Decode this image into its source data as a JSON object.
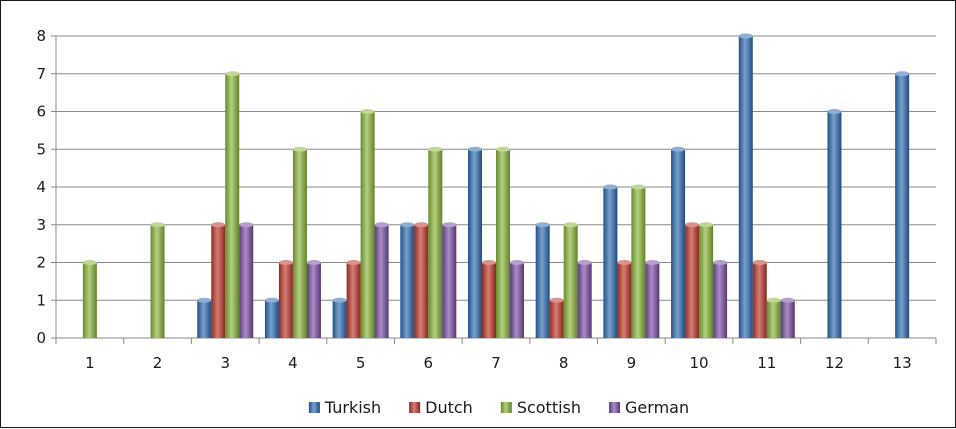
{
  "chart_data": {
    "type": "bar",
    "title": "",
    "xlabel": "",
    "ylabel": "",
    "categories": [
      "1",
      "2",
      "3",
      "4",
      "5",
      "6",
      "7",
      "8",
      "9",
      "10",
      "11",
      "12",
      "13"
    ],
    "ylim": [
      0,
      8
    ],
    "yticks": [
      "0",
      "1",
      "2",
      "3",
      "4",
      "5",
      "6",
      "7",
      "8"
    ],
    "grid": true,
    "legend_position": "bottom",
    "series": [
      {
        "name": "Turkish",
        "color": "#2e6db4",
        "values": [
          0,
          0,
          1,
          1,
          1,
          3,
          5,
          3,
          4,
          5,
          8,
          6,
          7
        ]
      },
      {
        "name": "Dutch",
        "color": "#c0392b",
        "values": [
          0,
          0,
          3,
          2,
          2,
          3,
          2,
          1,
          2,
          3,
          2,
          0,
          0
        ]
      },
      {
        "name": "Scottish",
        "color": "#8ab83a",
        "values": [
          2,
          3,
          7,
          5,
          6,
          5,
          5,
          3,
          4,
          3,
          1,
          0,
          0
        ]
      },
      {
        "name": "German",
        "color": "#7b4fa6",
        "values": [
          0,
          0,
          3,
          2,
          3,
          3,
          2,
          2,
          2,
          2,
          1,
          0,
          0
        ]
      }
    ]
  }
}
